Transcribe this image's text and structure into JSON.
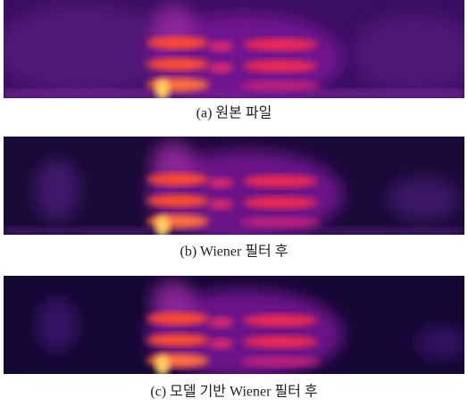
{
  "figure": {
    "panels": [
      {
        "caption": "(a) 원본 파일"
      },
      {
        "caption": "(b) Wiener 필터 후"
      },
      {
        "caption": "(c) 모델 기반 Wiener 필터 후"
      }
    ]
  }
}
